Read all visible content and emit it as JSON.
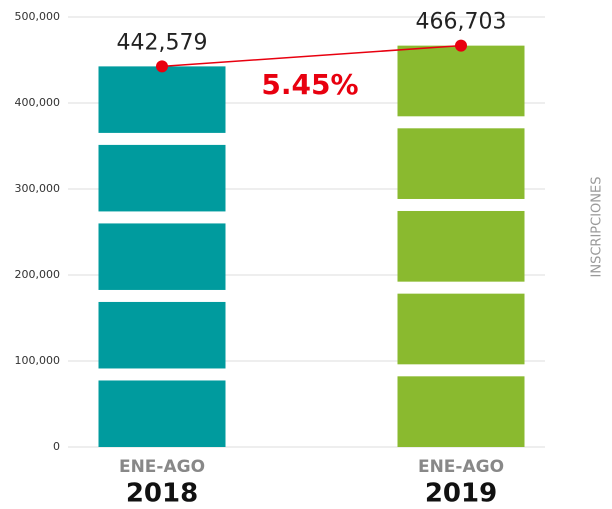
{
  "chart_data": {
    "type": "bar",
    "categories": [
      [
        "ENE-AGO",
        "2018"
      ],
      [
        "ENE-AGO",
        "2019"
      ]
    ],
    "values": [
      442579,
      466703
    ],
    "value_labels": [
      "442,579",
      "466,703"
    ],
    "colors": [
      "#009b9e",
      "#8aba2f"
    ],
    "line_color": "#e8000f",
    "annotation": "5.45%",
    "y_axis_label": "INSCRIPCIONES",
    "ylim": [
      0,
      500000
    ],
    "yticks": [
      0,
      {
        "value": 100000,
        "label": "100,000"
      },
      {
        "value": 200000,
        "label": "200,000"
      },
      {
        "value": 300000,
        "label": "300,000"
      },
      {
        "value": 400000,
        "label": "400,000"
      },
      {
        "value": 500000,
        "label": "500,000"
      }
    ],
    "grid": true
  }
}
